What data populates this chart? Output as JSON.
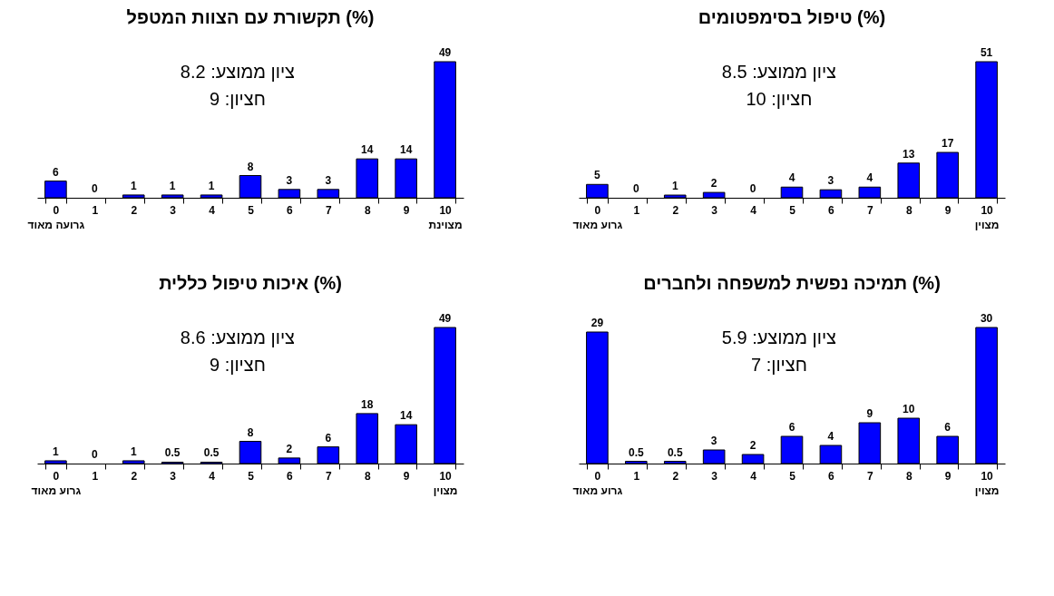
{
  "chart_data": [
    {
      "type": "bar",
      "title": "תקשורת עם הצוות המטפל (%)",
      "categories": [
        "0\nגרועה מאוד",
        "1",
        "2",
        "3",
        "4",
        "5",
        "6",
        "7",
        "8",
        "9",
        "10\nמצוינת"
      ],
      "values": [
        6,
        0,
        1,
        1,
        1,
        8,
        3,
        3,
        14,
        14,
        49
      ],
      "color": "#0000ff",
      "data_labels": true,
      "grid": false,
      "annotations": [
        "ציון ממוצע: 8.2",
        "חציון: 9"
      ]
    },
    {
      "type": "bar",
      "title": "טיפול בסימפטומים (%)",
      "categories": [
        "0\nגרוע מאוד",
        "1",
        "2",
        "3",
        "4",
        "5",
        "6",
        "7",
        "8",
        "9",
        "10\nמצוין"
      ],
      "values": [
        5,
        0,
        1,
        2,
        0,
        4,
        3,
        4,
        13,
        17,
        51
      ],
      "color": "#0000ff",
      "data_labels": true,
      "grid": false,
      "annotations": [
        "ציון ממוצע: 8.5",
        "חציון: 10"
      ]
    },
    {
      "type": "bar",
      "title": "איכות טיפול  כללית (%)",
      "categories": [
        "0\nגרוע מאוד",
        "1",
        "2",
        "3",
        "4",
        "5",
        "6",
        "7",
        "8",
        "9",
        "10\nמצוין"
      ],
      "values": [
        1,
        0,
        1,
        0.5,
        0.5,
        8,
        2,
        6,
        18,
        14,
        49
      ],
      "color": "#0000ff",
      "data_labels": true,
      "grid": false,
      "annotations": [
        "ציון ממוצע: 8.6",
        "חציון: 9"
      ]
    },
    {
      "type": "bar",
      "title": "תמיכה נפשית למשפחה ולחברים   (%)",
      "categories": [
        "0\nגרוע מאוד",
        "1",
        "2",
        "3",
        "4",
        "5",
        "6",
        "7",
        "8",
        "9",
        "10\nמצוין"
      ],
      "values": [
        29,
        0.5,
        0.5,
        3,
        2,
        6,
        4,
        9,
        10,
        6,
        30
      ],
      "color": "#0000ff",
      "data_labels": true,
      "grid": false,
      "annotations": [
        "ציון ממוצע: 5.9",
        "חציון: 7"
      ]
    }
  ]
}
